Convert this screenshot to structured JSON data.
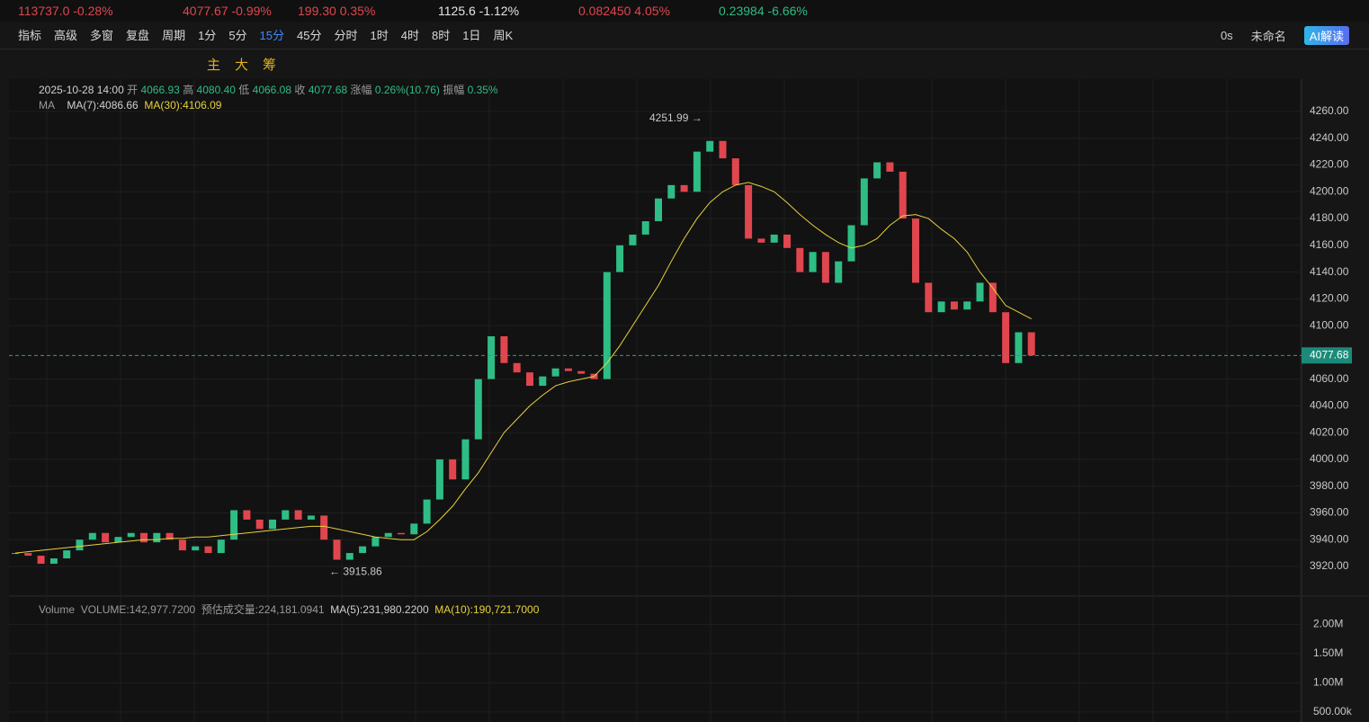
{
  "tickers": [
    {
      "price": "113737.0",
      "change": "-0.28%",
      "color": "#e0464e"
    },
    {
      "price": "4077.67",
      "change": "-0.99%",
      "color": "#e0464e"
    },
    {
      "price": "199.30",
      "change": "0.35%",
      "color": "#e0464e"
    },
    {
      "price": "1125.6",
      "change": "-1.12%",
      "color": "#e6e6e6"
    },
    {
      "price": "0.082450",
      "change": "4.05%",
      "color": "#e0464e"
    },
    {
      "price": "0.23984",
      "change": "-6.66%",
      "color": "#2ebd85"
    }
  ],
  "toolbar": {
    "left": [
      "指标",
      "高级",
      "多窗",
      "复盘",
      "周期"
    ],
    "periods": [
      "1分",
      "5分",
      "15分",
      "45分",
      "分时",
      "1时",
      "4时",
      "8时",
      "1日",
      "周K"
    ],
    "active_period": "15分",
    "right": [
      "0s",
      "未命名",
      "AI解读"
    ]
  },
  "drawing_tools": [
    "主",
    "大",
    "筹"
  ],
  "info": {
    "datetime": "2025-10-28 14:00",
    "open_label": "开",
    "open": "4066.93",
    "high_label": "高",
    "high": "4080.40",
    "low_label": "低",
    "low": "4066.08",
    "close_label": "收",
    "close": "4077.68",
    "change_label": "涨幅",
    "change": "0.26%(10.76)",
    "amplitude_label": "振幅",
    "amplitude": "0.35%",
    "ma_title": "MA",
    "ma7": "MA(7):4086.66",
    "ma30": "MA(30):4106.09"
  },
  "chart_data": {
    "type": "candlestick",
    "up_color": "#2ebd85",
    "down_color": "#e0464e",
    "close": [
      3930,
      3928,
      3922,
      3926,
      3932,
      3940,
      3945,
      3938,
      3942,
      3945,
      3938,
      3945,
      3940,
      3932,
      3935,
      3930,
      3940,
      3962,
      3955,
      3948,
      3955,
      3962,
      3955,
      3958,
      3940,
      3925,
      3930,
      3935,
      3942,
      3945,
      3944,
      3952,
      3970,
      4000,
      3985,
      4015,
      4060,
      4092,
      4072,
      4065,
      4055,
      4062,
      4068,
      4066,
      4064,
      4060,
      4140,
      4160,
      4168,
      4178,
      4195,
      4205,
      4200,
      4230,
      4238,
      4225,
      4205,
      4165,
      4162,
      4168,
      4158,
      4140,
      4155,
      4132,
      4148,
      4175,
      4210,
      4222,
      4215,
      4180,
      4132,
      4110,
      4118,
      4112,
      4118,
      4132,
      4110,
      4072,
      4095,
      4077.68
    ],
    "series": [
      {
        "name": "MA(30)",
        "color": "#e6d23c",
        "values": [
          3930,
          3931,
          3932,
          3933,
          3934,
          3935,
          3936,
          3937,
          3938,
          3939,
          3940,
          3940,
          3941,
          3941,
          3942,
          3942,
          3943,
          3944,
          3945,
          3946,
          3947,
          3948,
          3949,
          3950,
          3950,
          3948,
          3946,
          3944,
          3942,
          3941,
          3940,
          3940,
          3946,
          3955,
          3965,
          3978,
          3990,
          4005,
          4020,
          4030,
          4040,
          4048,
          4055,
          4058,
          4060,
          4062,
          4072,
          4085,
          4100,
          4115,
          4130,
          4148,
          4165,
          4180,
          4192,
          4200,
          4205,
          4207,
          4204,
          4200,
          4192,
          4183,
          4175,
          4168,
          4162,
          4158,
          4160,
          4165,
          4175,
          4182,
          4183,
          4180,
          4172,
          4165,
          4155,
          4140,
          4128,
          4115,
          4110,
          4105
        ]
      }
    ],
    "ylim": [
      3897.8,
      4284.2
    ],
    "yticks": [
      {
        "value": 4260,
        "label": "4260.00"
      },
      {
        "value": 4240,
        "label": "4240.00"
      },
      {
        "value": 4220,
        "label": "4220.00"
      },
      {
        "value": 4200,
        "label": "4200.00"
      },
      {
        "value": 4180,
        "label": "4180.00"
      },
      {
        "value": 4160,
        "label": "4160.00"
      },
      {
        "value": 4140,
        "label": "4140.00"
      },
      {
        "value": 4120,
        "label": "4120.00"
      },
      {
        "value": 4100,
        "label": "4100.00"
      },
      {
        "value": 4060,
        "label": "4060.00"
      },
      {
        "value": 4040,
        "label": "4040.00"
      },
      {
        "value": 4020,
        "label": "4020.00"
      },
      {
        "value": 4000,
        "label": "4000.00"
      },
      {
        "value": 3980,
        "label": "3980.00"
      },
      {
        "value": 3960,
        "label": "3960.00"
      },
      {
        "value": 3940,
        "label": "3940.00"
      },
      {
        "value": 3920,
        "label": "3920.00"
      }
    ],
    "current_price": 4077.68,
    "annotations": [
      {
        "value": 4251.99,
        "label": "4251.99 →"
      },
      {
        "value": 3915.86,
        "label": "← 3915.86"
      }
    ]
  },
  "volume_chart": {
    "title": "Volume",
    "volume": "VOLUME:142,977.7200",
    "estimate": "预估成交量:224,181.0941",
    "ma5": "MA(5):231,980.2200",
    "ma10": "MA(10):190,721.7000",
    "ylim": [
      328000,
      2484000
    ],
    "yticks": [
      {
        "value": 2000000,
        "label": "2.00M"
      },
      {
        "value": 1500000,
        "label": "1.50M"
      },
      {
        "value": 1000000,
        "label": "1.00M"
      },
      {
        "value": 500000,
        "label": "500.00k"
      }
    ]
  }
}
